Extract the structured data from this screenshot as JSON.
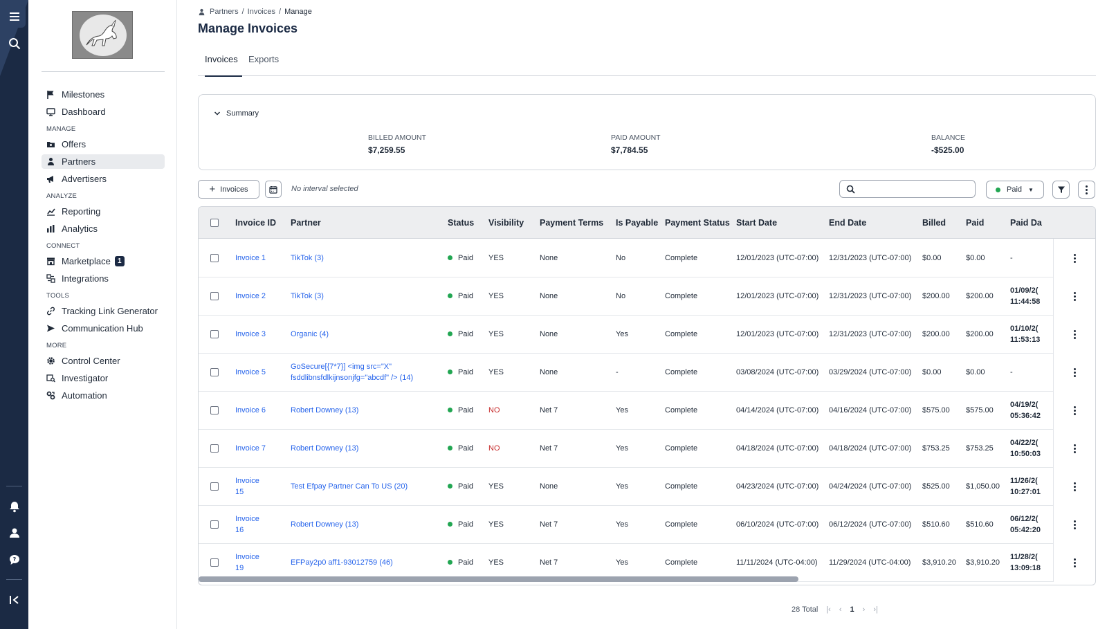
{
  "breadcrumb": {
    "items": [
      "Partners",
      "Invoices"
    ],
    "current": "Manage"
  },
  "page": {
    "title": "Manage Invoices"
  },
  "tabs": [
    {
      "label": "Invoices"
    },
    {
      "label": "Exports"
    }
  ],
  "sidebar": {
    "top": [
      {
        "label": "Milestones",
        "icon": "flag-icon"
      },
      {
        "label": "Dashboard",
        "icon": "monitor-icon"
      }
    ],
    "sections": [
      {
        "title": "MANAGE",
        "items": [
          {
            "label": "Offers",
            "icon": "folder-icon"
          },
          {
            "label": "Partners",
            "icon": "partner-icon",
            "active": true
          },
          {
            "label": "Advertisers",
            "icon": "megaphone-icon"
          }
        ]
      },
      {
        "title": "ANALYZE",
        "items": [
          {
            "label": "Reporting",
            "icon": "chart-icon"
          },
          {
            "label": "Analytics",
            "icon": "analytics-icon"
          }
        ]
      },
      {
        "title": "CONNECT",
        "items": [
          {
            "label": "Marketplace",
            "icon": "store-icon",
            "badge": "1"
          },
          {
            "label": "Integrations",
            "icon": "integrations-icon"
          }
        ]
      },
      {
        "title": "TOOLS",
        "items": [
          {
            "label": "Tracking Link Generator",
            "icon": "link-icon"
          },
          {
            "label": "Communication Hub",
            "icon": "send-icon"
          }
        ]
      },
      {
        "title": "MORE",
        "items": [
          {
            "label": "Control Center",
            "icon": "gear-icon"
          },
          {
            "label": "Investigator",
            "icon": "investigator-icon"
          },
          {
            "label": "Automation",
            "icon": "automation-icon"
          }
        ]
      }
    ]
  },
  "summary": {
    "toggle_label": "Summary",
    "billed_label": "BILLED AMOUNT",
    "billed_value": "$7,259.55",
    "paid_label": "PAID AMOUNT",
    "paid_value": "$7,784.55",
    "balance_label": "BALANCE",
    "balance_value": "-$525.00"
  },
  "toolbar": {
    "add_label": "Invoices",
    "interval_text": "No interval selected",
    "search_placeholder": "",
    "status_filter_label": "Paid"
  },
  "table": {
    "columns": [
      "Invoice ID",
      "Partner",
      "Status",
      "Visibility",
      "Payment Terms",
      "Is Payable",
      "Payment Status",
      "Start Date",
      "End Date",
      "Billed",
      "Paid",
      "Paid Da"
    ],
    "rows": [
      {
        "id": "Invoice 1",
        "partner": "TikTok (3)",
        "status": "Paid",
        "visibility": "YES",
        "terms": "None",
        "payable": "No",
        "pstatus": "Complete",
        "start": "12/01/2023 (UTC-07:00)",
        "end": "12/31/2023 (UTC-07:00)",
        "billed": "$0.00",
        "paid": "$0.00",
        "paid_date": "-",
        "paid_time": ""
      },
      {
        "id": "Invoice 2",
        "partner": "TikTok (3)",
        "status": "Paid",
        "visibility": "YES",
        "terms": "None",
        "payable": "No",
        "pstatus": "Complete",
        "start": "12/01/2023 (UTC-07:00)",
        "end": "12/31/2023 (UTC-07:00)",
        "billed": "$200.00",
        "paid": "$200.00",
        "paid_date": "01/09/2(",
        "paid_time": "11:44:58"
      },
      {
        "id": "Invoice 3",
        "partner": "Organic (4)",
        "status": "Paid",
        "visibility": "YES",
        "terms": "None",
        "payable": "Yes",
        "pstatus": "Complete",
        "start": "12/01/2023 (UTC-07:00)",
        "end": "12/31/2023 (UTC-07:00)",
        "billed": "$200.00",
        "paid": "$200.00",
        "paid_date": "01/10/2(",
        "paid_time": "11:53:13"
      },
      {
        "id": "Invoice 5",
        "partner": "GoSecure[{7*7}] <img src=\"X\" fsddlibnsfdlkijnsonjfg=\"abcdf\" /> (14)",
        "status": "Paid",
        "visibility": "YES",
        "terms": "None",
        "payable": "-",
        "pstatus": "Complete",
        "start": "03/08/2024 (UTC-07:00)",
        "end": "03/29/2024 (UTC-07:00)",
        "billed": "$0.00",
        "paid": "$0.00",
        "paid_date": "-",
        "paid_time": ""
      },
      {
        "id": "Invoice 6",
        "partner": "Robert Downey (13)",
        "status": "Paid",
        "visibility": "NO",
        "terms": "Net 7",
        "payable": "Yes",
        "pstatus": "Complete",
        "start": "04/14/2024 (UTC-07:00)",
        "end": "04/16/2024 (UTC-07:00)",
        "billed": "$575.00",
        "paid": "$575.00",
        "paid_date": "04/19/2(",
        "paid_time": "05:36:42"
      },
      {
        "id": "Invoice 7",
        "partner": "Robert Downey (13)",
        "status": "Paid",
        "visibility": "NO",
        "terms": "Net 7",
        "payable": "Yes",
        "pstatus": "Complete",
        "start": "04/18/2024 (UTC-07:00)",
        "end": "04/18/2024 (UTC-07:00)",
        "billed": "$753.25",
        "paid": "$753.25",
        "paid_date": "04/22/2(",
        "paid_time": "10:50:03"
      },
      {
        "id": "Invoice 15",
        "partner": "Test Efpay Partner Can To US (20)",
        "status": "Paid",
        "visibility": "YES",
        "terms": "None",
        "payable": "Yes",
        "pstatus": "Complete",
        "start": "04/23/2024 (UTC-07:00)",
        "end": "04/24/2024 (UTC-07:00)",
        "billed": "$525.00",
        "paid": "$1,050.00",
        "paid_date": "11/26/2(",
        "paid_time": "10:27:01"
      },
      {
        "id": "Invoice 16",
        "partner": "Robert Downey (13)",
        "status": "Paid",
        "visibility": "YES",
        "terms": "Net 7",
        "payable": "Yes",
        "pstatus": "Complete",
        "start": "06/10/2024 (UTC-07:00)",
        "end": "06/12/2024 (UTC-07:00)",
        "billed": "$510.60",
        "paid": "$510.60",
        "paid_date": "06/12/2(",
        "paid_time": "05:42:20"
      },
      {
        "id": "Invoice 19",
        "partner": "EFPay2p0 aff1-93012759 (46)",
        "status": "Paid",
        "visibility": "YES",
        "terms": "Net 7",
        "payable": "Yes",
        "pstatus": "Complete",
        "start": "11/11/2024 (UTC-04:00)",
        "end": "11/29/2024 (UTC-04:00)",
        "billed": "$3,910.20",
        "paid": "$3,910.20",
        "paid_date": "11/28/2(",
        "paid_time": "13:09:18"
      }
    ]
  },
  "pagination": {
    "total_text": "28 Total",
    "current_page": "1"
  },
  "colors": {
    "navy": "#1b2a44",
    "link": "#2563eb",
    "paid_green": "#22a652",
    "no_red": "#c62828"
  }
}
